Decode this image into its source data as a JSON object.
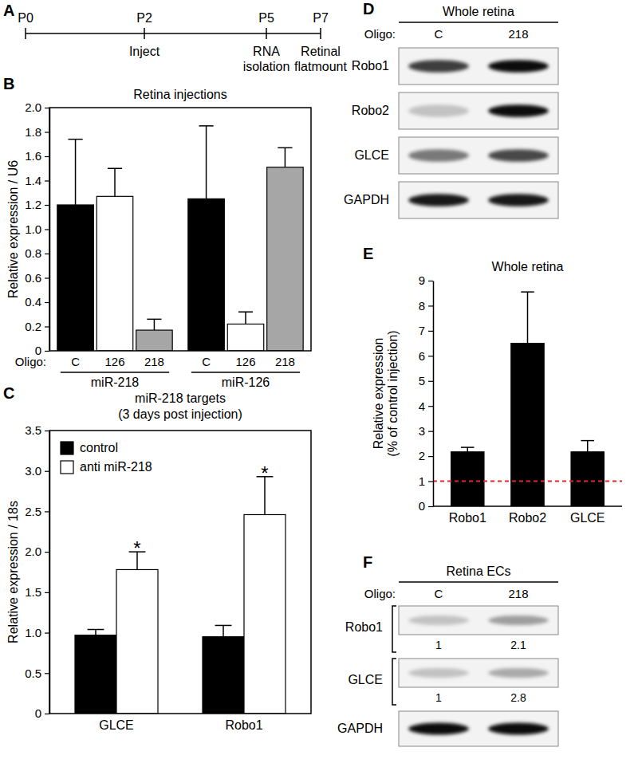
{
  "timeline": {
    "panel": "A",
    "points": [
      {
        "label": "P0"
      },
      {
        "label": "P2",
        "notes": [
          "Inject"
        ]
      },
      {
        "label": "P5",
        "notes": [
          "RNA",
          "isolation"
        ]
      },
      {
        "label": "P7",
        "notes": [
          "Retinal",
          "flatmount"
        ]
      }
    ]
  },
  "chart_data": [
    {
      "panel": "B",
      "type": "bar",
      "title": "Retina injections",
      "y_label": "Relative expression / U6",
      "x_label": "Oligo:",
      "categories": [
        "miR-218",
        "miR-126"
      ],
      "series": [
        {
          "name": "C",
          "color": "#000000",
          "values": [
            1.2,
            1.25
          ],
          "errors": [
            0.54,
            0.6
          ]
        },
        {
          "name": "126",
          "color": "#ffffff",
          "values": [
            1.27,
            0.22
          ],
          "errors": [
            0.23,
            0.1
          ]
        },
        {
          "name": "218",
          "color": "#a6a6a6",
          "values": [
            0.17,
            1.51
          ],
          "errors": [
            0.09,
            0.16
          ]
        }
      ],
      "ylim": [
        0,
        2
      ],
      "yticks": [
        0,
        0.2,
        0.4,
        0.6,
        0.8,
        {
          "value": 1,
          "label": "1.0"
        },
        1.2,
        1.4,
        1.6,
        1.8,
        {
          "value": 2,
          "label": "2.0"
        }
      ]
    },
    {
      "panel": "C",
      "type": "bar",
      "title": "miR-218 targets",
      "subtitle": "(3 days post injection)",
      "y_label": "Relative expression / 18s",
      "categories": [
        "GLCE",
        "Robo1"
      ],
      "series": [
        {
          "name": "control",
          "color": "#000000",
          "values": [
            0.97,
            0.95
          ],
          "errors": [
            0.07,
            0.14
          ]
        },
        {
          "name": "anti miR-218",
          "color": "#ffffff",
          "values": [
            1.78,
            2.46
          ],
          "errors": [
            0.22,
            0.47
          ],
          "annotations": [
            "*",
            "*"
          ]
        }
      ],
      "legend": "top-left",
      "ylim": [
        0,
        3.5
      ],
      "yticks": [
        0,
        0.5,
        {
          "value": 1,
          "label": "1.0"
        },
        1.5,
        {
          "value": 2,
          "label": "2.0"
        },
        2.5,
        {
          "value": 3,
          "label": "3.0"
        },
        3.5
      ]
    },
    {
      "panel": "E",
      "type": "bar",
      "title": "Whole retina",
      "y_label": [
        "Relative expression",
        "(% of control injection)"
      ],
      "categories": [
        "Robo1",
        "Robo2",
        "GLCE"
      ],
      "values": [
        2.17,
        6.5,
        2.17
      ],
      "errors": [
        0.18,
        2.05,
        0.45
      ],
      "color": "#000000",
      "reference_line": {
        "value": 1,
        "color": "#e8262a",
        "line_style": "dashed"
      },
      "ylim": [
        0,
        9
      ],
      "yticks": [
        0,
        1,
        2,
        3,
        4,
        5,
        6,
        7,
        8,
        9
      ]
    }
  ],
  "blots": [
    {
      "panel": "D",
      "title": "Whole retina",
      "lane_label": "Oligo:",
      "lanes": [
        "C",
        "218"
      ],
      "rows": [
        {
          "name": "Robo1",
          "intensity": [
            0.75,
            0.95
          ]
        },
        {
          "name": "Robo2",
          "intensity": [
            0.2,
            0.95
          ]
        },
        {
          "name": "GLCE",
          "intensity": [
            0.5,
            0.7
          ]
        },
        {
          "name": "GAPDH",
          "intensity": [
            0.9,
            0.9
          ]
        }
      ]
    },
    {
      "panel": "F",
      "title": "Retina ECs",
      "lane_label": "Oligo:",
      "lanes": [
        "C",
        "218"
      ],
      "rows": [
        {
          "name": "Robo1",
          "intensity": [
            0.2,
            0.35
          ],
          "quantification": [
            1,
            2.1
          ]
        },
        {
          "name": "GLCE",
          "intensity": [
            0.2,
            0.3
          ],
          "quantification": [
            1,
            2.8
          ]
        },
        {
          "name": "GAPDH",
          "intensity": [
            0.95,
            0.95
          ]
        }
      ]
    }
  ]
}
